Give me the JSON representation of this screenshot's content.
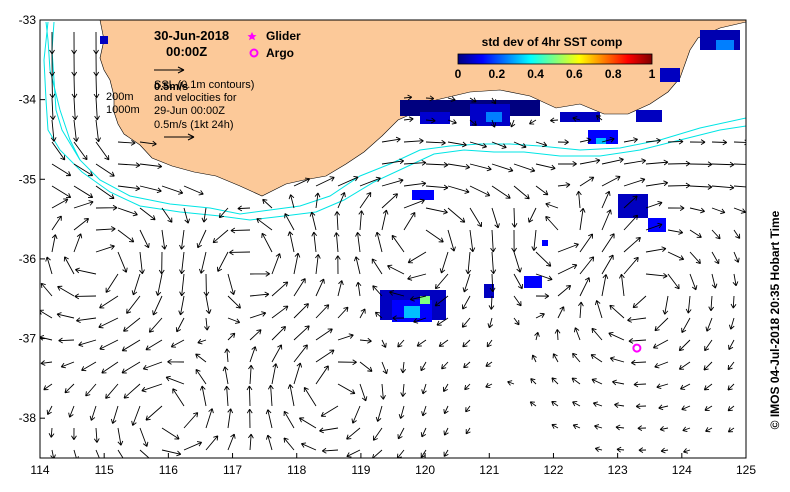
{
  "header": {
    "date": "30-Jun-2018",
    "time": "00:00Z"
  },
  "legend": {
    "glider_label": "Glider",
    "argo_label": "Argo",
    "glider_color": "#ff00ff",
    "argo_color": "#ff00ff"
  },
  "info": {
    "scale_top": "0.5m/s",
    "ssl_line": "SSL (0.1m contours)",
    "vel_line1": "and velocities for",
    "vel_line2": "29-Jun 00:00Z",
    "vel_line3": "0.5m/s (1kt 24h)",
    "depth_200": "200m",
    "depth_1000": "1000m"
  },
  "colorbar": {
    "title": "std dev of 4hr SST comp",
    "ticks": [
      "0",
      "0.2",
      "0.4",
      "0.6",
      "0.8",
      "1"
    ],
    "colors": [
      "#00007f",
      "#0000ff",
      "#007fff",
      "#00ffff",
      "#7fff7f",
      "#ffff00",
      "#ff7f00",
      "#ff0000",
      "#7f0000"
    ]
  },
  "side_label": "© IMOS 04-Jul-2018 20:35 Hobart Time",
  "map": {
    "land_color": "#fcc999",
    "ocean_color": "#ffffff",
    "isobath_color": "#00e5e5",
    "lon_range": [
      114,
      125
    ],
    "lat_range": [
      -38.5,
      -33
    ],
    "x_ticks": [
      "114",
      "115",
      "116",
      "117",
      "118",
      "119",
      "120",
      "121",
      "122",
      "123",
      "124",
      "125"
    ],
    "y_ticks": [
      "-33",
      "-34",
      "-35",
      "-36",
      "-37",
      "-38"
    ],
    "argo_position": {
      "lon": 123.3,
      "lat": -37.12
    }
  }
}
